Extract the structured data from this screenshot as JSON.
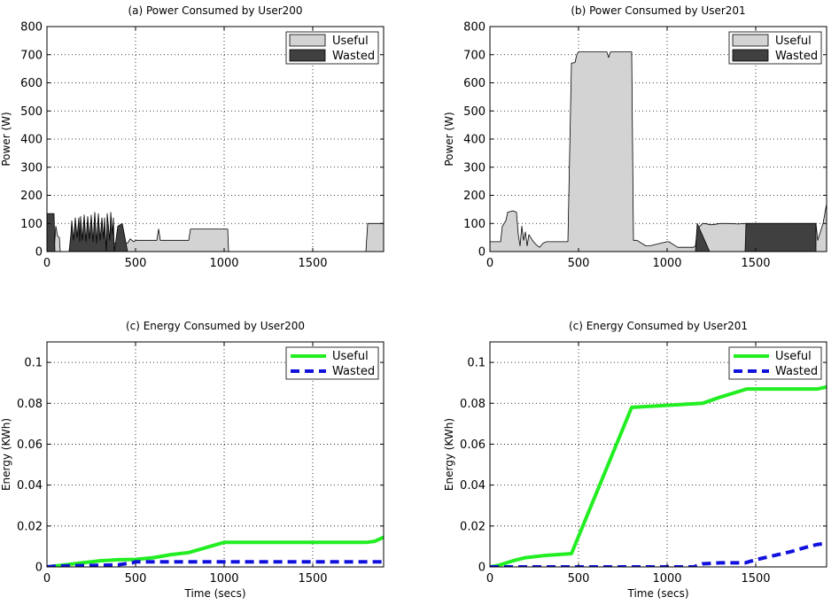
{
  "chart_data": [
    {
      "type": "area",
      "title": "(a) Power Consumed by User200",
      "xlabel": "",
      "ylabel": "Power (W)",
      "xlim": [
        0,
        1900
      ],
      "ylim": [
        0,
        800
      ],
      "xticks": [
        0,
        500,
        1000,
        1500
      ],
      "yticks": [
        0,
        100,
        200,
        300,
        400,
        500,
        600,
        700,
        800
      ],
      "grid": true,
      "legend_position": "top-right",
      "series": [
        {
          "name": "Useful",
          "color": "#d3d3d3",
          "x": [
            0,
            40,
            50,
            60,
            70,
            75,
            125,
            135,
            175,
            325,
            335,
            375,
            380,
            455,
            470,
            490,
            500,
            620,
            630,
            640,
            800,
            810,
            1020,
            1025,
            1800,
            1810,
            1900
          ],
          "y": [
            0,
            0,
            90,
            55,
            50,
            0,
            0,
            35,
            35,
            35,
            0,
            0,
            30,
            30,
            45,
            35,
            40,
            40,
            80,
            40,
            40,
            80,
            80,
            0,
            0,
            100,
            100
          ]
        },
        {
          "name": "Wasted",
          "color": "#404040",
          "x": [
            0,
            40,
            45,
            125,
            135,
            140,
            150,
            160,
            170,
            180,
            185,
            190,
            200,
            210,
            220,
            230,
            240,
            250,
            260,
            270,
            280,
            290,
            300,
            310,
            320,
            325,
            335,
            340,
            355,
            360,
            370,
            375,
            380,
            400,
            425,
            455
          ],
          "y": [
            135,
            135,
            0,
            0,
            60,
            110,
            40,
            120,
            50,
            120,
            35,
            125,
            40,
            130,
            35,
            125,
            45,
            130,
            35,
            140,
            30,
            135,
            40,
            120,
            45,
            120,
            0,
            135,
            40,
            140,
            60,
            120,
            0,
            90,
            100,
            0
          ]
        }
      ]
    },
    {
      "type": "area",
      "title": "(b) Power Consumed by User201",
      "xlabel": "",
      "ylabel": "Power (W)",
      "xlim": [
        0,
        1900
      ],
      "ylim": [
        0,
        800
      ],
      "xticks": [
        0,
        500,
        1000,
        1500
      ],
      "yticks": [
        0,
        100,
        200,
        300,
        400,
        500,
        600,
        700,
        800
      ],
      "grid": true,
      "legend_position": "top-right",
      "series": [
        {
          "name": "Useful",
          "color": "#d3d3d3",
          "x": [
            0,
            60,
            70,
            90,
            100,
            130,
            150,
            160,
            170,
            180,
            190,
            200,
            210,
            220,
            240,
            260,
            280,
            300,
            320,
            350,
            400,
            440,
            460,
            480,
            490,
            500,
            530,
            600,
            660,
            670,
            680,
            720,
            800,
            810,
            830,
            880,
            900,
            1000,
            1010,
            1060,
            1150,
            1160,
            1170,
            1200,
            1210,
            1250,
            1300,
            1350,
            1400,
            1440,
            1840,
            1850,
            1880,
            1900
          ],
          "y": [
            35,
            35,
            90,
            110,
            140,
            145,
            140,
            60,
            20,
            90,
            40,
            70,
            20,
            60,
            40,
            25,
            15,
            30,
            35,
            35,
            35,
            35,
            670,
            672,
            700,
            710,
            710,
            710,
            710,
            690,
            710,
            710,
            710,
            40,
            40,
            20,
            20,
            35,
            35,
            15,
            15,
            20,
            80,
            100,
            100,
            95,
            100,
            100,
            98,
            100,
            100,
            40,
            100,
            170
          ]
        },
        {
          "name": "Wasted",
          "color": "#404040",
          "x": [
            1160,
            1170,
            1240,
            1440,
            1445,
            1840
          ],
          "y": [
            0,
            100,
            0,
            0,
            100,
            100
          ]
        }
      ]
    },
    {
      "type": "line",
      "title": "(c) Energy Consumed by User200",
      "xlabel": "Time (secs)",
      "ylabel": "Energy (KWh)",
      "xlim": [
        0,
        1900
      ],
      "ylim": [
        0,
        0.11
      ],
      "xticks": [
        0,
        500,
        1000,
        1500
      ],
      "yticks": [
        0,
        0.02,
        0.04,
        0.06,
        0.08,
        0.1
      ],
      "grid": true,
      "legend_position": "top-right",
      "series": [
        {
          "name": "Useful",
          "color": "#22ee22",
          "style": "solid",
          "x": [
            0,
            100,
            200,
            300,
            400,
            500,
            600,
            700,
            800,
            900,
            1000,
            1100,
            1200,
            1300,
            1400,
            1500,
            1600,
            1700,
            1800,
            1850,
            1900
          ],
          "y": [
            0,
            0.001,
            0.002,
            0.003,
            0.0035,
            0.0037,
            0.0045,
            0.006,
            0.007,
            0.0095,
            0.012,
            0.012,
            0.012,
            0.012,
            0.012,
            0.012,
            0.012,
            0.012,
            0.012,
            0.0125,
            0.0145
          ]
        },
        {
          "name": "Wasted",
          "color": "#1111dd",
          "style": "dashed",
          "x": [
            0,
            50,
            150,
            300,
            400,
            480,
            500,
            700,
            1000,
            1500,
            1900
          ],
          "y": [
            0,
            0.0004,
            0.0006,
            0.0008,
            0.001,
            0.002,
            0.0025,
            0.0025,
            0.0025,
            0.0025,
            0.0025
          ]
        }
      ]
    },
    {
      "type": "line",
      "title": "(c) Energy Consumed by User201",
      "xlabel": "Time (secs)",
      "ylabel": "Energy (KWh)",
      "xlim": [
        0,
        1900
      ],
      "ylim": [
        0,
        0.11
      ],
      "xticks": [
        0,
        500,
        1000,
        1500
      ],
      "yticks": [
        0,
        0.02,
        0.04,
        0.06,
        0.08,
        0.1
      ],
      "grid": true,
      "legend_position": "top-right",
      "series": [
        {
          "name": "Useful",
          "color": "#22ee22",
          "style": "solid",
          "x": [
            0,
            50,
            130,
            200,
            300,
            460,
            800,
            900,
            1000,
            1100,
            1200,
            1300,
            1450,
            1600,
            1700,
            1800,
            1850,
            1900
          ],
          "y": [
            0,
            0.0008,
            0.003,
            0.0045,
            0.0055,
            0.0065,
            0.078,
            0.0785,
            0.079,
            0.0795,
            0.08,
            0.083,
            0.087,
            0.087,
            0.087,
            0.087,
            0.087,
            0.088
          ]
        },
        {
          "name": "Wasted",
          "color": "#1111dd",
          "style": "dashed",
          "x": [
            0,
            500,
            1000,
            1150,
            1200,
            1300,
            1440,
            1500,
            1600,
            1700,
            1800,
            1850,
            1900
          ],
          "y": [
            0,
            0,
            0,
            0,
            0.0015,
            0.002,
            0.002,
            0.0035,
            0.0055,
            0.0075,
            0.01,
            0.011,
            0.0115
          ]
        }
      ]
    }
  ]
}
